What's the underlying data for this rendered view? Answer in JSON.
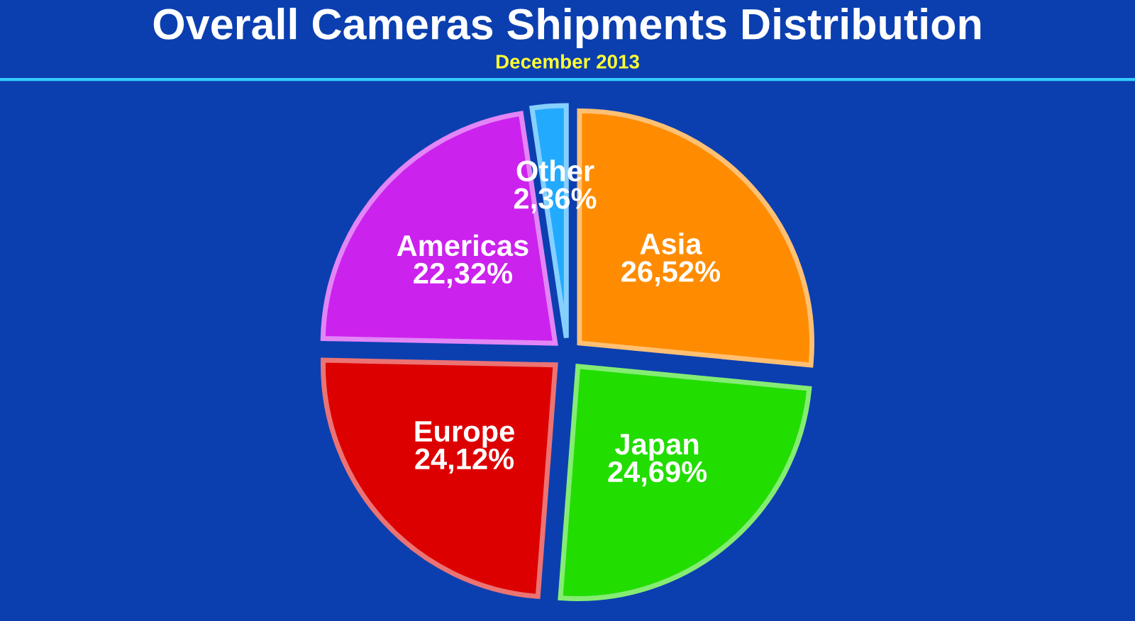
{
  "chart_data": {
    "type": "pie",
    "title": "Overall Cameras Shipments Distribution",
    "subtitle": "December 2013",
    "categories": [
      "Asia",
      "Japan",
      "Europe",
      "Americas",
      "Other"
    ],
    "values": [
      26.52,
      24.69,
      24.12,
      22.32,
      2.36
    ],
    "value_labels": [
      "26,52%",
      "24,69%",
      "24,12%",
      "22,32%",
      "2,36%"
    ],
    "colors": [
      "#ff8c00",
      "#22dd00",
      "#dd0000",
      "#cc22ee",
      "#22aaff"
    ],
    "legend": false
  }
}
